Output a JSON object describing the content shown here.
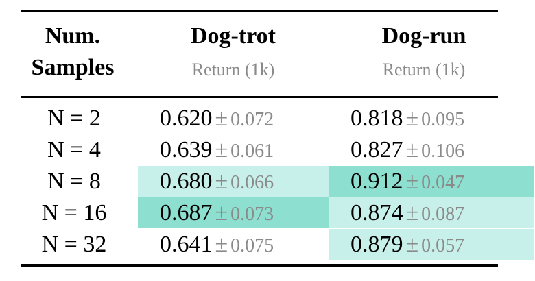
{
  "table": {
    "headers": {
      "col0": {
        "line1": "Num.",
        "line2": "Samples"
      },
      "col1": {
        "title": "Dog-trot",
        "subtitle": "Return (1k)"
      },
      "col2": {
        "title": "Dog-run",
        "subtitle": "Return (1k)"
      }
    },
    "pm_symbol": "±",
    "rows": [
      {
        "n": "N = 2",
        "trot": {
          "mean": "0.620",
          "std": "0.072",
          "highlight": "none"
        },
        "run": {
          "mean": "0.818",
          "std": "0.095",
          "highlight": "none"
        }
      },
      {
        "n": "N = 4",
        "trot": {
          "mean": "0.639",
          "std": "0.061",
          "highlight": "none"
        },
        "run": {
          "mean": "0.827",
          "std": "0.106",
          "highlight": "none"
        }
      },
      {
        "n": "N = 8",
        "trot": {
          "mean": "0.680",
          "std": "0.066",
          "highlight": "light"
        },
        "run": {
          "mean": "0.912",
          "std": "0.047",
          "highlight": "dark"
        }
      },
      {
        "n": "N = 16",
        "trot": {
          "mean": "0.687",
          "std": "0.073",
          "highlight": "dark"
        },
        "run": {
          "mean": "0.874",
          "std": "0.087",
          "highlight": "light"
        }
      },
      {
        "n": "N = 32",
        "trot": {
          "mean": "0.641",
          "std": "0.075",
          "highlight": "none"
        },
        "run": {
          "mean": "0.879",
          "std": "0.057",
          "highlight": "light"
        }
      }
    ],
    "colors": {
      "highlight_light": "#c8f0ea",
      "highlight_dark": "#8ddfd0",
      "muted_text": "#8a8a8a"
    }
  }
}
